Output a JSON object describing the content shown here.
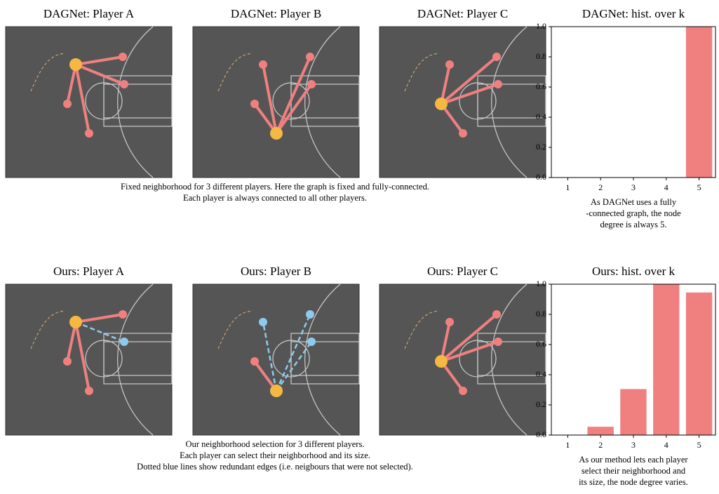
{
  "panels": [
    {
      "title": "DAGNet: Player A"
    },
    {
      "title": "DAGNet: Player B"
    },
    {
      "title": "DAGNet: Player C"
    },
    {
      "title": "Ours: Player A"
    },
    {
      "title": "Ours: Player B"
    },
    {
      "title": "Ours: Player C"
    }
  ],
  "captions": [
    {
      "lines": [
        "Fixed neighborhood for 3 different players. Here the graph is fixed and fully-connected.",
        "Each player is always connected to all other players."
      ]
    },
    {
      "lines": [
        "Our neighborhood selection for 3 different players.",
        "Each player can select their neighborhood and its size.",
        "Dotted blue lines show redundant edges (i.e. neigbours that were not selected)."
      ]
    }
  ],
  "chart_data": [
    {
      "type": "bar",
      "title": "DAGNet: hist. over k",
      "categories": [
        "1",
        "2",
        "3",
        "4",
        "5"
      ],
      "values": [
        0,
        0,
        0,
        0,
        1.0
      ],
      "color": "#f08080",
      "ylim": [
        0,
        1.0
      ],
      "yticks": [
        {
          "value": 0,
          "label": "0.0"
        },
        {
          "value": 0.2,
          "label": "0.2"
        },
        {
          "value": 0.4,
          "label": "0.4"
        },
        {
          "value": 0.6,
          "label": "0.6"
        },
        {
          "value": 0.8,
          "label": "0.8"
        },
        {
          "value": 1.0,
          "label": "1.0"
        }
      ],
      "caption_lines": [
        "As DAGNet uses a fully",
        "-connected graph, the node",
        "degree is always 5."
      ]
    },
    {
      "type": "bar",
      "title": "Ours: hist. over k",
      "categories": [
        "1",
        "2",
        "3",
        "4",
        "5"
      ],
      "values": [
        0,
        0.055,
        0.305,
        1.0,
        0.945
      ],
      "color": "#f08080",
      "ylim": [
        0,
        1.0
      ],
      "yticks": [
        {
          "value": 0,
          "label": "0.0"
        },
        {
          "value": 0.2,
          "label": "0.2"
        },
        {
          "value": 0.4,
          "label": "0.4"
        },
        {
          "value": 0.6,
          "label": "0.6"
        },
        {
          "value": 0.8,
          "label": "0.8"
        },
        {
          "value": 1.0,
          "label": "1.0"
        }
      ],
      "caption_lines": [
        "As our method lets each player",
        "select their neighborhood and",
        "its size, the node degree varies."
      ]
    }
  ]
}
